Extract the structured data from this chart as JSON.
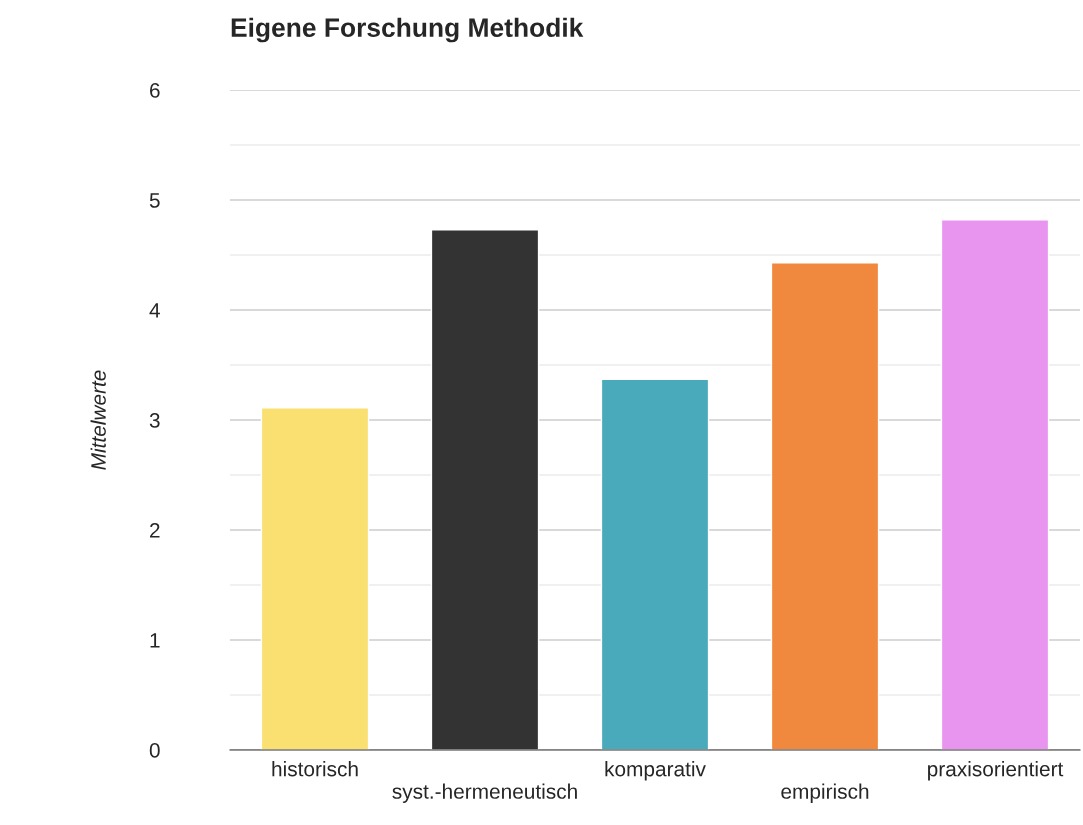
{
  "chart_data": {
    "type": "bar",
    "title": "Eigene Forschung Methodik",
    "ylabel": "Mittelwerte",
    "categories": [
      "historisch",
      "syst.-hermeneutisch",
      "komparativ",
      "empirisch",
      "praxisorientiert"
    ],
    "values": [
      3.11,
      4.73,
      3.37,
      4.43,
      4.82
    ],
    "colors": [
      "#f9e071",
      "#333333",
      "#48aaba",
      "#f0883d",
      "#e895f0"
    ],
    "ylim": [
      0,
      6
    ],
    "yticks": [
      0,
      1,
      2,
      3,
      4,
      5,
      6
    ],
    "grid": "y"
  }
}
